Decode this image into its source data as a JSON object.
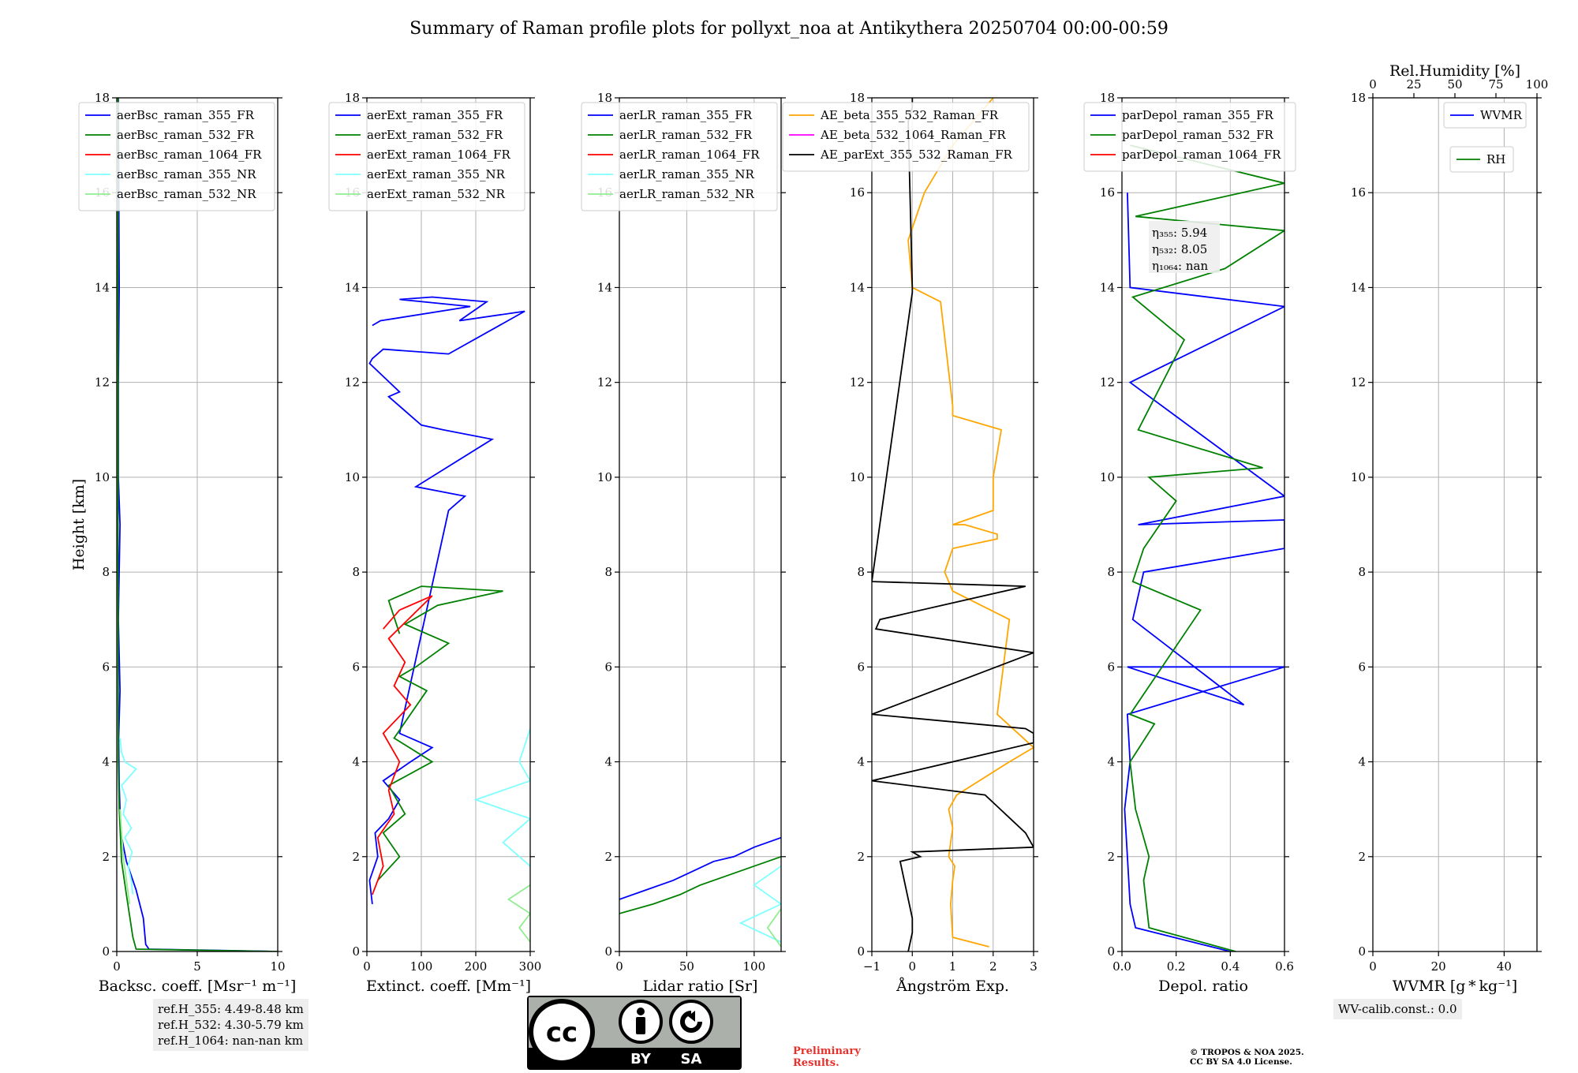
{
  "title": "Summary of Raman profile plots for pollyxt_noa at Antikythera 20250704 00:00-00:59",
  "colors": {
    "c355": "#0000ff",
    "c532": "#008000",
    "c1064": "#ff0000",
    "c355nr": "#7fffff",
    "c532nr": "#90ee90",
    "ae1": "#ffa500",
    "ae2": "#ff00ff",
    "ae3": "#000000"
  },
  "chart_data": [
    {
      "type": "line",
      "xlabel": "Backsc. coeff. [Msr⁻¹ m⁻¹]",
      "ylabel": "Height [km]",
      "xlim": [
        0,
        10
      ],
      "ylim": [
        0,
        18
      ],
      "xticks": [
        "0",
        "5",
        "10"
      ],
      "yticks": [
        "0",
        "2",
        "4",
        "6",
        "8",
        "10",
        "12",
        "14",
        "16",
        "18"
      ],
      "grid": true,
      "legend_position": "top-left",
      "series": [
        {
          "name": "aerBsc_raman_355_FR",
          "color_key": "c355",
          "x": [
            10,
            2.0,
            1.8,
            1.65,
            1.2,
            0.6,
            0.25,
            0.15,
            0.12,
            0.2,
            0.1,
            0.2,
            0.1,
            0.1,
            0.15,
            0.1
          ],
          "y": [
            0,
            0.05,
            0.15,
            0.7,
            1.3,
            1.9,
            2.5,
            3.5,
            4.5,
            5.5,
            7,
            9,
            10,
            12,
            14,
            18
          ]
        },
        {
          "name": "aerBsc_raman_532_FR",
          "color_key": "c532",
          "x": [
            10,
            1.2,
            1.0,
            0.6,
            0.3,
            0.15,
            0.1,
            0.08,
            0.08,
            0.08
          ],
          "y": [
            0,
            0.05,
            0.3,
            1.2,
            1.9,
            3,
            4,
            8,
            12,
            18
          ]
        },
        {
          "name": "aerBsc_raman_1064_FR",
          "color_key": "c1064",
          "x": [],
          "y": []
        },
        {
          "name": "aerBsc_raman_355_NR",
          "color_key": "c355nr",
          "x": [
            1.0,
            0.9,
            0.7,
            0.95,
            0.5,
            0.9,
            0.4,
            0.6,
            0.3,
            1.2,
            0.5,
            0.3,
            0.2
          ],
          "y": [
            1.2,
            1.5,
            1.8,
            2.1,
            2.4,
            2.6,
            2.9,
            3.2,
            3.5,
            3.85,
            4.0,
            4.2,
            4.5
          ]
        },
        {
          "name": "aerBsc_raman_532_NR",
          "color_key": "c532nr",
          "x": [
            0.8,
            0.6,
            0.4,
            0.3,
            0.2
          ],
          "y": [
            1.0,
            1.5,
            2.0,
            2.5,
            3.0
          ]
        }
      ],
      "annotation": [
        "ref.H_355: 4.49-8.48 km",
        "ref.H_532: 4.30-5.79 km",
        "ref.H_1064: nan-nan km"
      ]
    },
    {
      "type": "line",
      "xlabel": "Extinct. coeff. [Mm⁻¹]",
      "xlim": [
        0,
        300
      ],
      "ylim": [
        0,
        18
      ],
      "xticks": [
        "0",
        "100",
        "200",
        "300"
      ],
      "yticks": [
        "0",
        "2",
        "4",
        "6",
        "8",
        "10",
        "12",
        "14",
        "16",
        "18"
      ],
      "grid": true,
      "legend_position": "top-left",
      "series": [
        {
          "name": "aerExt_raman_355_FR",
          "color_key": "c355",
          "x": [
            10,
            5,
            20,
            15,
            40,
            60,
            30,
            80,
            120,
            60,
            150,
            180,
            90,
            230,
            140,
            100,
            40,
            60,
            5,
            10,
            30,
            150,
            290,
            170,
            220,
            120,
            60,
            190,
            25,
            10
          ],
          "y": [
            1.0,
            1.5,
            2.0,
            2.5,
            2.8,
            3.2,
            3.6,
            4.0,
            4.3,
            4.6,
            9.3,
            9.6,
            9.8,
            10.8,
            11.0,
            11.1,
            11.7,
            11.8,
            12.4,
            12.5,
            12.7,
            12.6,
            13.5,
            13.3,
            13.7,
            13.8,
            13.75,
            13.6,
            13.3,
            13.2
          ],
          "segments": true
        },
        {
          "name": "aerExt_raman_532_FR",
          "color_key": "c532",
          "x": [
            20,
            60,
            30,
            70,
            40,
            120,
            50,
            80,
            110,
            60,
            90,
            150,
            70,
            130,
            250,
            100,
            40,
            60
          ],
          "y": [
            1.5,
            2.0,
            2.5,
            2.9,
            3.5,
            4.0,
            4.5,
            5.0,
            5.5,
            5.8,
            6.0,
            6.5,
            6.9,
            7.3,
            7.6,
            7.7,
            7.4,
            6.7
          ]
        },
        {
          "name": "aerExt_raman_1064_FR",
          "color_key": "c1064",
          "x": [
            10,
            30,
            20,
            50,
            40,
            60,
            30,
            80,
            50,
            70,
            40,
            120,
            60,
            30
          ],
          "y": [
            1.2,
            1.8,
            2.4,
            2.9,
            3.4,
            4.0,
            4.6,
            5.2,
            5.6,
            6.1,
            6.6,
            7.5,
            7.2,
            6.8
          ]
        },
        {
          "name": "aerExt_raman_355_NR",
          "color_key": "c355nr",
          "x": [
            300,
            250,
            300,
            200,
            300,
            280,
            300
          ],
          "y": [
            1.8,
            2.3,
            2.8,
            3.2,
            3.6,
            4.0,
            4.7
          ]
        },
        {
          "name": "aerExt_raman_532_NR",
          "color_key": "c532nr",
          "x": [
            300,
            280,
            300,
            260,
            300
          ],
          "y": [
            0.2,
            0.5,
            0.8,
            1.1,
            1.4
          ]
        }
      ]
    },
    {
      "type": "line",
      "xlabel": "Lidar ratio [Sr]",
      "xlim": [
        0,
        120
      ],
      "ylim": [
        0,
        18
      ],
      "xticks": [
        "0",
        "50",
        "100"
      ],
      "yticks": [
        "0",
        "2",
        "4",
        "6",
        "8",
        "10",
        "12",
        "14",
        "16",
        "18"
      ],
      "grid": true,
      "legend_position": "top-left",
      "series": [
        {
          "name": "aerLR_raman_355_FR",
          "color_key": "c355",
          "x": [
            0,
            20,
            40,
            55,
            70,
            85,
            100,
            120
          ],
          "y": [
            1.1,
            1.3,
            1.5,
            1.7,
            1.9,
            2.0,
            2.2,
            2.4
          ]
        },
        {
          "name": "aerLR_raman_532_FR",
          "color_key": "c532",
          "x": [
            0,
            25,
            45,
            60,
            80,
            100,
            120
          ],
          "y": [
            0.8,
            1.0,
            1.2,
            1.4,
            1.6,
            1.8,
            2.0
          ]
        },
        {
          "name": "aerLR_raman_1064_FR",
          "color_key": "c1064",
          "x": [],
          "y": []
        },
        {
          "name": "aerLR_raman_355_NR",
          "color_key": "c355nr",
          "x": [
            120,
            90,
            120,
            100,
            120
          ],
          "y": [
            0.2,
            0.6,
            1.0,
            1.4,
            1.8
          ]
        },
        {
          "name": "aerLR_raman_532_NR",
          "color_key": "c532nr",
          "x": [
            120,
            110,
            120
          ],
          "y": [
            0.1,
            0.5,
            0.9
          ]
        }
      ]
    },
    {
      "type": "line",
      "xlabel": "Ångström Exp.",
      "xlim": [
        -1,
        3
      ],
      "ylim": [
        0,
        18
      ],
      "xticks": [
        "−1",
        "0",
        "1",
        "2",
        "3"
      ],
      "yticks": [
        "0",
        "2",
        "4",
        "6",
        "8",
        "10",
        "12",
        "14",
        "16",
        "18"
      ],
      "grid": true,
      "legend_position": "top-center",
      "series": [
        {
          "name": "AE_beta_355_532_Raman_FR",
          "color_key": "ae1",
          "x": [
            1.9,
            1.0,
            0.95,
            1.0,
            1.05,
            0.9,
            0.95,
            1.0,
            0.9,
            1.1,
            2.4,
            3.0,
            2.1,
            2.4,
            1.0,
            0.8,
            1.0,
            2.1,
            2.1,
            1.3,
            1.0,
            2.0,
            2.0,
            2.2,
            1.0,
            1.0,
            0.7,
            0.0,
            -0.1,
            0.3,
            1.0,
            2.0
          ],
          "y": [
            0.1,
            0.3,
            1.0,
            1.5,
            1.8,
            2.0,
            2.3,
            2.6,
            3.0,
            3.3,
            4.0,
            4.3,
            5.0,
            7.0,
            7.6,
            8.0,
            8.5,
            8.7,
            8.8,
            9.0,
            9.0,
            9.3,
            10.0,
            11.0,
            11.3,
            11.5,
            13.7,
            14.0,
            15.0,
            16.0,
            17.0,
            18.0
          ]
        },
        {
          "name": "AE_beta_532_1064_Raman_FR",
          "color_key": "ae2",
          "x": [],
          "y": []
        },
        {
          "name": "AE_parExt_355_532_Raman_FR",
          "color_key": "ae3",
          "x": [
            -0.1,
            0.0,
            0.0,
            -0.3,
            0.2,
            0.0,
            3.0,
            2.8,
            1.8,
            -1.0,
            3.0,
            3.0,
            2.8,
            -1.0,
            3.0,
            -0.9,
            -0.8,
            2.8,
            -1.0,
            0.0,
            0.0,
            -0.1,
            0.0,
            0.0
          ],
          "y": [
            0.0,
            0.4,
            0.7,
            1.9,
            2.0,
            2.1,
            2.2,
            2.5,
            3.3,
            3.6,
            4.4,
            4.6,
            4.7,
            5.0,
            6.3,
            6.8,
            7.0,
            7.7,
            7.8,
            13.9,
            14.0,
            17.5,
            17.8,
            18.0
          ]
        }
      ]
    },
    {
      "type": "line",
      "xlabel": "Depol. ratio",
      "xlim": [
        0,
        0.6
      ],
      "ylim": [
        0,
        18
      ],
      "xticks": [
        "0.0",
        "0.2",
        "0.4",
        "0.6"
      ],
      "yticks": [
        "0",
        "2",
        "4",
        "6",
        "8",
        "10",
        "12",
        "14",
        "16",
        "18"
      ],
      "grid": true,
      "legend_position": "top-left",
      "series": [
        {
          "name": "parDepol_raman_355_FR",
          "color_key": "c355",
          "x": [
            0.4,
            0.05,
            0.03,
            0.02,
            0.01,
            0.03,
            0.02,
            0.6,
            0.02,
            0.45,
            0.04,
            0.08,
            0.6,
            0.6,
            0.06,
            0.6,
            0.03,
            0.6,
            0.03,
            0.02
          ],
          "y": [
            0.0,
            0.5,
            1.0,
            2.0,
            3.0,
            4.0,
            5.0,
            6.0,
            6.0,
            5.2,
            7.0,
            8.0,
            8.5,
            9.1,
            9.0,
            9.6,
            12.0,
            13.6,
            14.0,
            16.0
          ]
        },
        {
          "name": "parDepol_raman_532_FR",
          "color_key": "c532",
          "x": [
            0.42,
            0.1,
            0.08,
            0.1,
            0.05,
            0.03,
            0.12,
            0.03,
            0.29,
            0.04,
            0.08,
            0.2,
            0.1,
            0.52,
            0.06,
            0.23,
            0.04,
            0.38,
            0.6,
            0.05,
            0.6,
            0.03
          ],
          "y": [
            0.0,
            0.5,
            1.5,
            2.0,
            3.0,
            4.0,
            4.8,
            5.0,
            7.2,
            7.8,
            8.5,
            9.5,
            10.0,
            10.2,
            11.0,
            12.9,
            13.8,
            14.4,
            15.2,
            15.5,
            16.2,
            17.0
          ]
        },
        {
          "name": "parDepol_raman_1064_FR",
          "color_key": "c1064",
          "x": [],
          "y": []
        }
      ],
      "annotation": [
        "η₃₅₅: 5.94",
        "η₅₃₂: 8.05",
        "η₁₀₆₄: nan"
      ]
    },
    {
      "type": "line",
      "xlabel": "WVMR [g * kg⁻¹]",
      "top_xlabel": "Rel.Humidity [%]",
      "xlim": [
        0,
        50
      ],
      "ylim": [
        0,
        18
      ],
      "xticks": [
        "0",
        "20",
        "40"
      ],
      "top_xticks": [
        "0",
        "25",
        "50",
        "75",
        "100"
      ],
      "yticks": [
        "0",
        "2",
        "4",
        "6",
        "8",
        "10",
        "12",
        "14",
        "16",
        "18"
      ],
      "grid": true,
      "series": [
        {
          "name": "WVMR",
          "color_key": "c355",
          "x": [],
          "y": []
        },
        {
          "name": "RH",
          "color_key": "c532",
          "x": [],
          "y": []
        }
      ],
      "annotation": [
        "WV-calib.const.: 0.0"
      ]
    }
  ],
  "footer": {
    "license_by": "BY",
    "license_sa": "SA",
    "license_cc": "cc",
    "preliminary": [
      "Preliminary",
      "Results."
    ],
    "copyright": [
      "© TROPOS & NOA 2025.",
      "CC BY SA 4.0 License."
    ]
  }
}
